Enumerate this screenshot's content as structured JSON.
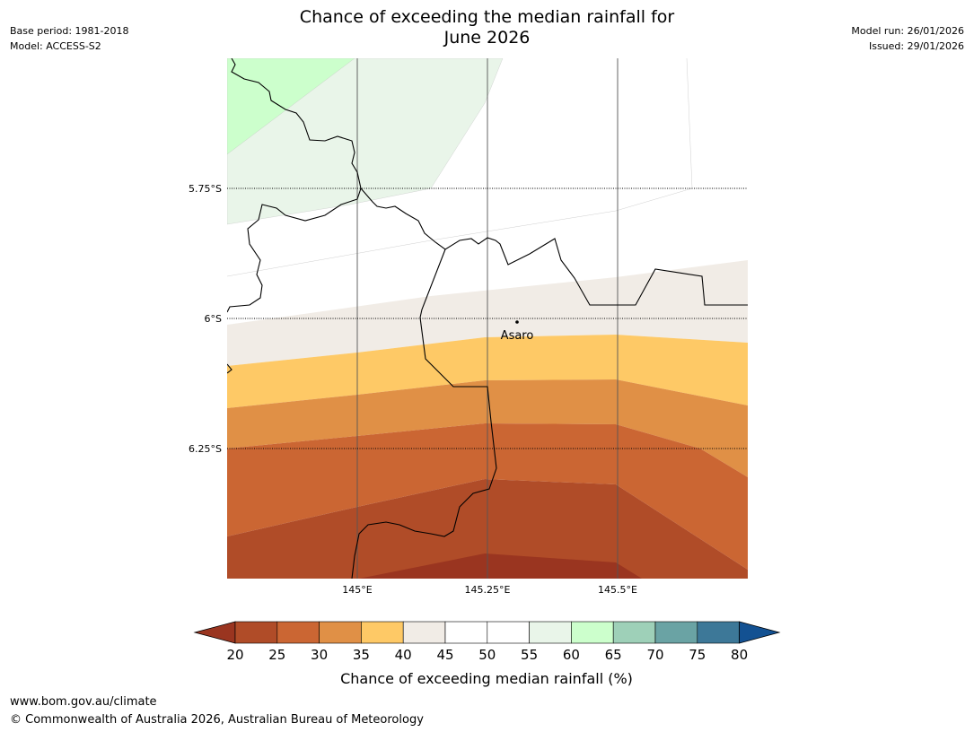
{
  "header": {
    "base_period": "Base period: 1981-2018",
    "model": "Model: ACCESS-S2",
    "model_run": "Model run: 26/01/2026",
    "issued": "Issued: 29/01/2026",
    "title_line1": "Chance of exceeding the median rainfall for",
    "title_line2": "June 2026"
  },
  "map": {
    "latitude_labels": [
      "5.75°S",
      "6°S",
      "6.25°S"
    ],
    "longitude_labels": [
      "145°E",
      "145.25°E",
      "145.5°E"
    ],
    "place": {
      "name": "Asaro",
      "lat": -6.01,
      "lon": 145.31
    },
    "bands_percent": [
      {
        "range": "60-65",
        "color": "#ccffcc"
      },
      {
        "range": "55-60",
        "color": "#e9f5e9"
      },
      {
        "range": "45-55",
        "color": "#ffffff"
      },
      {
        "range": "40-45",
        "color": "#f1ece6"
      },
      {
        "range": "35-40",
        "color": "#fec966"
      },
      {
        "range": "30-35",
        "color": "#e09046"
      },
      {
        "range": "25-30",
        "color": "#cb6633"
      },
      {
        "range": "20-25",
        "color": "#b04c28"
      },
      {
        "range": "<20",
        "color": "#9a3520"
      }
    ]
  },
  "colorbar": {
    "ticks": [
      "20",
      "25",
      "30",
      "35",
      "40",
      "45",
      "50",
      "55",
      "60",
      "65",
      "70",
      "75",
      "80"
    ],
    "colors": [
      "#b04c28",
      "#cb6633",
      "#e09046",
      "#fec966",
      "#f1ece6",
      "#ffffff",
      "#ffffff",
      "#e9f5e9",
      "#ccffcc",
      "#9ed0b8",
      "#6aa3a4",
      "#3d7898"
    ],
    "under_color": "#9a3520",
    "over_color": "#135192",
    "label": "Chance of exceeding median rainfall (%)"
  },
  "footer": {
    "url": "www.bom.gov.au/climate",
    "copyright": "© Commonwealth of Australia 2026, Australian Bureau of Meteorology"
  }
}
